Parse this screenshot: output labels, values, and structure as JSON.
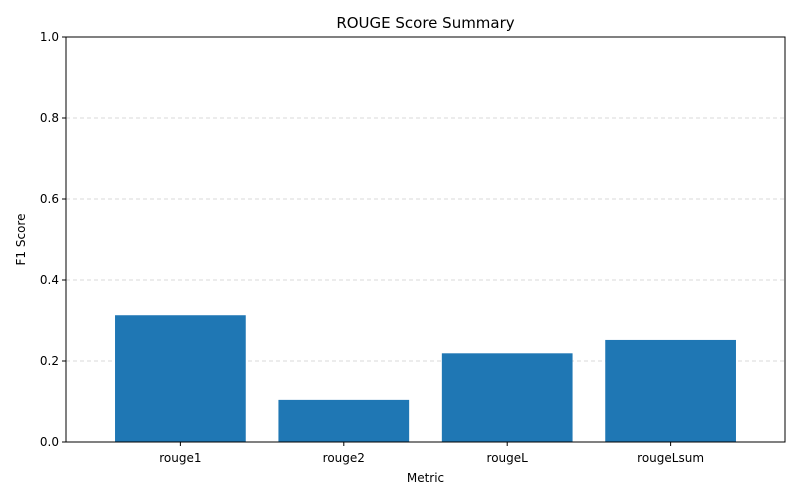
{
  "chart_data": {
    "type": "bar",
    "title": "ROUGE Score Summary",
    "xlabel": "Metric",
    "ylabel": "F1 Score",
    "categories": [
      "rouge1",
      "rouge2",
      "rougeL",
      "rougeLsum"
    ],
    "values": [
      0.313,
      0.104,
      0.219,
      0.252
    ],
    "ylim": [
      0,
      1
    ],
    "yticks": [
      "0.0",
      "0.2",
      "0.4",
      "0.6",
      "0.8",
      "1.0"
    ],
    "grid": "y-dashed",
    "bar_color": "#1f77b4",
    "grid_color": "#cccccc"
  }
}
